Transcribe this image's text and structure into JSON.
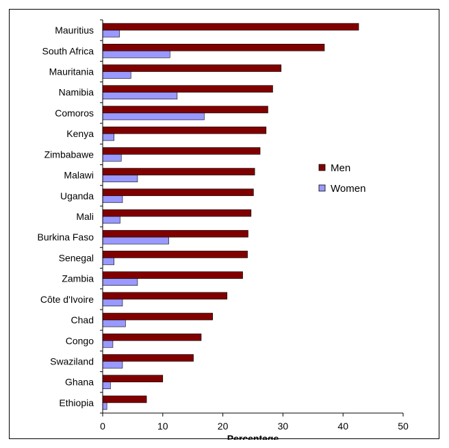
{
  "chart_data": {
    "type": "bar",
    "orientation": "horizontal",
    "title": "",
    "xlabel": "Percentage",
    "ylabel": "",
    "xlim": [
      0,
      50
    ],
    "xticks": [
      0,
      10,
      20,
      30,
      40,
      50
    ],
    "grid": false,
    "legend_position": "right",
    "categories": [
      "Mauritius",
      "South Africa",
      "Mauritania",
      "Namibia",
      "Comoros",
      "Kenya",
      "Zimbabawe",
      "Malawi",
      "Uganda",
      "Mali",
      "Burkina Faso",
      "Senegal",
      "Zambia",
      "Côte d'Ivoire",
      "Chad",
      "Congo",
      "Swaziland",
      "Ghana",
      "Ethiopia"
    ],
    "series": [
      {
        "name": "Men",
        "color": "#800000",
        "values": [
          42.6,
          36.9,
          29.7,
          28.3,
          27.5,
          27.2,
          26.2,
          25.3,
          25.1,
          24.7,
          24.2,
          24.1,
          23.3,
          20.7,
          18.3,
          16.4,
          15.1,
          10.0,
          7.3
        ]
      },
      {
        "name": "Women",
        "color": "#9999ff",
        "values": [
          2.8,
          11.2,
          4.7,
          12.4,
          16.9,
          1.9,
          3.1,
          5.8,
          3.3,
          2.9,
          11.0,
          1.9,
          5.8,
          3.3,
          3.8,
          1.7,
          3.3,
          1.3,
          0.7
        ]
      }
    ]
  }
}
